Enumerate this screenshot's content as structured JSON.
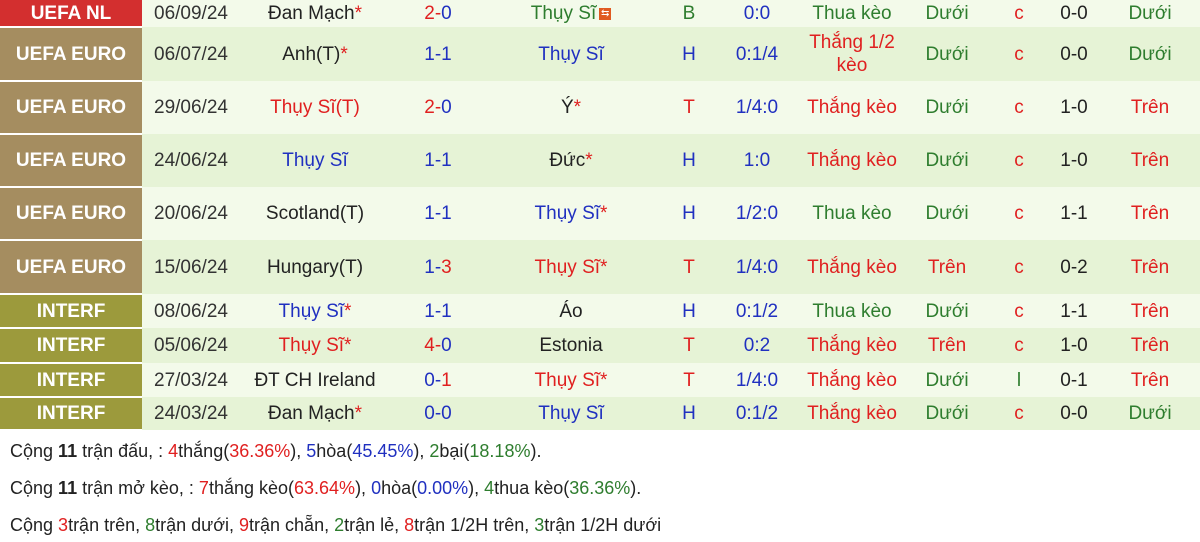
{
  "colors": {
    "uefa_nl": "#d32f2f",
    "uefa_euro": "#a58d60",
    "interf": "#9c9a3c"
  },
  "rows": [
    {
      "league": "UEFA NL",
      "lc": "#d32f2f",
      "date": "06/09/24",
      "home": "Đan Mạch",
      "hc": "dark",
      "hstar": true,
      "sh": "2",
      "shc": "red",
      "sa": "0",
      "sac": "blue",
      "away": "Thụy Sĩ",
      "ac": "green",
      "astar": false,
      "flag": true,
      "res": "B",
      "rc": "green",
      "hcp": "0:0",
      "kr": "Thua kèo",
      "krc": "green",
      "ou": "Dưới",
      "ouc": "green",
      "c": "c",
      "ht": "0-0",
      "htou": "Dưới",
      "htouc": "green",
      "h": 27
    },
    {
      "league": "UEFA EURO",
      "lc": "#a58d60",
      "date": "06/07/24",
      "home": "Anh(T)",
      "hc": "dark",
      "hstar": true,
      "sh": "1",
      "shc": "blue",
      "sa": "1",
      "sac": "blue",
      "away": "Thụy Sĩ",
      "ac": "blue",
      "astar": false,
      "res": "H",
      "rc": "blue",
      "hcp": "0:1/4",
      "kr": "Thắng 1/2 kèo",
      "krc": "red",
      "ou": "Dưới",
      "ouc": "green",
      "c": "c",
      "ht": "0-0",
      "htou": "Dưới",
      "htouc": "green",
      "h": 54
    },
    {
      "league": "UEFA EURO",
      "lc": "#a58d60",
      "date": "29/06/24",
      "home": "Thụy Sĩ(T)",
      "hc": "red",
      "hstar": false,
      "sh": "2",
      "shc": "red",
      "sa": "0",
      "sac": "blue",
      "away": "Ý",
      "ac": "dark",
      "astar": true,
      "res": "T",
      "rc": "red",
      "hcp": "1/4:0",
      "kr": "Thắng kèo",
      "krc": "red",
      "ou": "Dưới",
      "ouc": "green",
      "c": "c",
      "ht": "1-0",
      "htou": "Trên",
      "htouc": "red",
      "h": 53
    },
    {
      "league": "UEFA EURO",
      "lc": "#a58d60",
      "date": "24/06/24",
      "home": "Thụy Sĩ",
      "hc": "blue",
      "hstar": false,
      "sh": "1",
      "shc": "blue",
      "sa": "1",
      "sac": "blue",
      "away": "Đức",
      "ac": "dark",
      "astar": true,
      "res": "H",
      "rc": "blue",
      "hcp": "1:0",
      "kr": "Thắng kèo",
      "krc": "red",
      "ou": "Dưới",
      "ouc": "green",
      "c": "c",
      "ht": "1-0",
      "htou": "Trên",
      "htouc": "red",
      "h": 53
    },
    {
      "league": "UEFA EURO",
      "lc": "#a58d60",
      "date": "20/06/24",
      "home": "Scotland(T)",
      "hc": "dark",
      "hstar": false,
      "sh": "1",
      "shc": "blue",
      "sa": "1",
      "sac": "blue",
      "away": "Thụy Sĩ",
      "ac": "blue",
      "astar": true,
      "res": "H",
      "rc": "blue",
      "hcp": "1/2:0",
      "kr": "Thua kèo",
      "krc": "green",
      "ou": "Dưới",
      "ouc": "green",
      "c": "c",
      "ht": "1-1",
      "htou": "Trên",
      "htouc": "red",
      "h": 53
    },
    {
      "league": "UEFA EURO",
      "lc": "#a58d60",
      "date": "15/06/24",
      "home": "Hungary(T)",
      "hc": "dark",
      "hstar": false,
      "sh": "1",
      "shc": "blue",
      "sa": "3",
      "sac": "red",
      "away": "Thụy Sĩ",
      "ac": "red",
      "astar": true,
      "res": "T",
      "rc": "red",
      "hcp": "1/4:0",
      "kr": "Thắng kèo",
      "krc": "red",
      "ou": "Trên",
      "ouc": "red",
      "c": "c",
      "ht": "0-2",
      "htou": "Trên",
      "htouc": "red",
      "h": 54
    },
    {
      "league": "INTERF",
      "lc": "#9c9a3c",
      "date": "08/06/24",
      "home": "Thụy Sĩ",
      "hc": "blue",
      "hstar": true,
      "sh": "1",
      "shc": "blue",
      "sa": "1",
      "sac": "blue",
      "away": "Áo",
      "ac": "dark",
      "astar": false,
      "res": "H",
      "rc": "blue",
      "hcp": "0:1/2",
      "kr": "Thua kèo",
      "krc": "green",
      "ou": "Dưới",
      "ouc": "green",
      "c": "c",
      "ht": "1-1",
      "htou": "Trên",
      "htouc": "red",
      "h": 34
    },
    {
      "league": "INTERF",
      "lc": "#9c9a3c",
      "date": "05/06/24",
      "home": "Thụy Sĩ",
      "hc": "red",
      "hstar": true,
      "sh": "4",
      "shc": "red",
      "sa": "0",
      "sac": "blue",
      "away": "Estonia",
      "ac": "dark",
      "astar": false,
      "res": "T",
      "rc": "red",
      "hcp": "0:2",
      "kr": "Thắng kèo",
      "krc": "red",
      "ou": "Trên",
      "ouc": "red",
      "c": "c",
      "ht": "1-0",
      "htou": "Trên",
      "htouc": "red",
      "h": 35
    },
    {
      "league": "INTERF",
      "lc": "#9c9a3c",
      "date": "27/03/24",
      "home": "ĐT CH Ireland",
      "hc": "dark",
      "hstar": false,
      "sh": "0",
      "shc": "blue",
      "sa": "1",
      "sac": "red",
      "away": "Thụy Sĩ",
      "ac": "red",
      "astar": true,
      "res": "T",
      "rc": "red",
      "hcp": "1/4:0",
      "kr": "Thắng kèo",
      "krc": "red",
      "ou": "Dưới",
      "ouc": "green",
      "c": "l",
      "ht": "0-1",
      "htou": "Trên",
      "htouc": "red",
      "h": 34
    },
    {
      "league": "INTERF",
      "lc": "#9c9a3c",
      "date": "24/03/24",
      "home": "Đan Mạch",
      "hc": "dark",
      "hstar": true,
      "sh": "0",
      "shc": "blue",
      "sa": "0",
      "sac": "blue",
      "away": "Thụy Sĩ",
      "ac": "blue",
      "astar": false,
      "res": "H",
      "rc": "blue",
      "hcp": "0:1/2",
      "kr": "Thắng kèo",
      "krc": "red",
      "ou": "Dưới",
      "ouc": "green",
      "c": "c",
      "ht": "0-0",
      "htou": "Dưới",
      "htouc": "green",
      "h": 33
    }
  ],
  "summary": [
    [
      [
        "Cộng ",
        "dark",
        0
      ],
      [
        "11",
        "dark",
        1
      ],
      [
        " trận đấu, : ",
        "dark",
        0
      ],
      [
        "4",
        "red",
        0
      ],
      [
        "thắng(",
        "dark",
        0
      ],
      [
        "36.36%",
        "red",
        0
      ],
      [
        "), ",
        "dark",
        0
      ],
      [
        "5",
        "blue",
        0
      ],
      [
        "hòa(",
        "dark",
        0
      ],
      [
        "45.45%",
        "blue",
        0
      ],
      [
        "), ",
        "dark",
        0
      ],
      [
        "2",
        "green",
        0
      ],
      [
        "bại(",
        "dark",
        0
      ],
      [
        "18.18%",
        "green",
        0
      ],
      [
        ").",
        "dark",
        0
      ]
    ],
    [
      [
        "Cộng ",
        "dark",
        0
      ],
      [
        "11",
        "dark",
        1
      ],
      [
        " trận mở kèo, : ",
        "dark",
        0
      ],
      [
        "7",
        "red",
        0
      ],
      [
        "thắng kèo(",
        "dark",
        0
      ],
      [
        "63.64%",
        "red",
        0
      ],
      [
        "), ",
        "dark",
        0
      ],
      [
        "0",
        "blue",
        0
      ],
      [
        "hòa(",
        "dark",
        0
      ],
      [
        "0.00%",
        "blue",
        0
      ],
      [
        "), ",
        "dark",
        0
      ],
      [
        "4",
        "green",
        0
      ],
      [
        "thua kèo(",
        "dark",
        0
      ],
      [
        "36.36%",
        "green",
        0
      ],
      [
        ").",
        "dark",
        0
      ]
    ],
    [
      [
        "Cộng ",
        "dark",
        0
      ],
      [
        "3",
        "red",
        0
      ],
      [
        "trận trên, ",
        "dark",
        0
      ],
      [
        "8",
        "green",
        0
      ],
      [
        "trận dưới, ",
        "dark",
        0
      ],
      [
        "9",
        "red",
        0
      ],
      [
        "trận chẵn, ",
        "dark",
        0
      ],
      [
        "2",
        "green",
        0
      ],
      [
        "trận lẻ, ",
        "dark",
        0
      ],
      [
        "8",
        "red",
        0
      ],
      [
        "trận 1/2H trên, ",
        "dark",
        0
      ],
      [
        "3",
        "green",
        0
      ],
      [
        "trận 1/2H dưới",
        "dark",
        0
      ]
    ]
  ]
}
